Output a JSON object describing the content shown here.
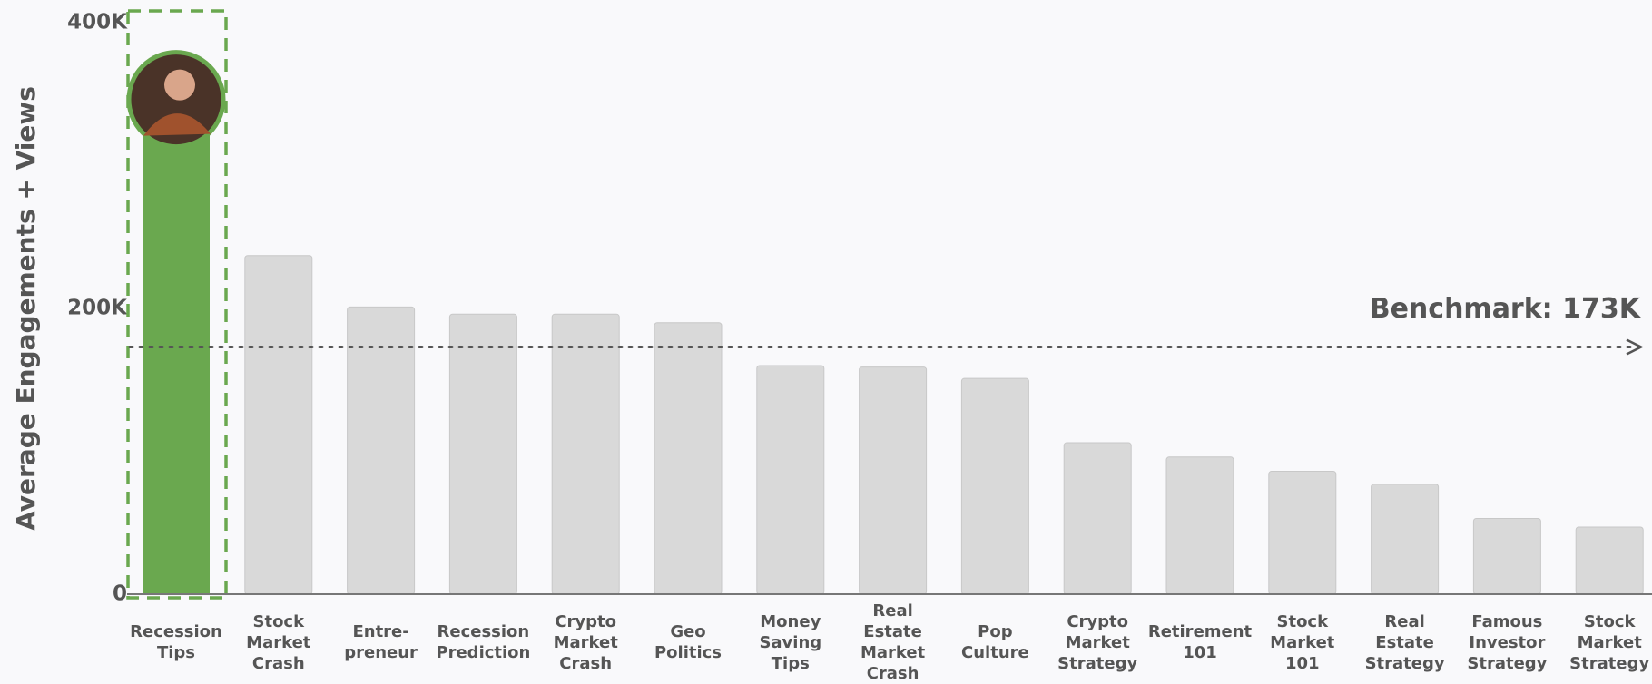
{
  "chart_data": {
    "type": "bar",
    "y_label": "Average Engagements + Views",
    "categories": [
      "Recession\nTips",
      "Stock\nMarket\nCrash",
      "Entre-\npreneur",
      "Recession\nPrediction",
      "Crypto\nMarket\nCrash",
      "Geo\nPolitics",
      "Money\nSaving\nTips",
      "Real\nEstate\nMarket\nCrash",
      "Pop\nCulture",
      "Crypto\nMarket\nStrategy",
      "Retirement\n101",
      "Stock\nMarket\n101",
      "Real\nEstate\nStrategy",
      "Famous\nInvestor\nStrategy",
      "Stock\nMarket\nStrategy"
    ],
    "values": [
      345000,
      237000,
      201000,
      196000,
      196000,
      190000,
      160000,
      159000,
      151000,
      106000,
      96000,
      86000,
      77000,
      53000,
      47000
    ],
    "color": "#d9d9d9",
    "highlight_color": "#6aa84f",
    "highlight_index": 0,
    "ylim": [
      0,
      400000
    ],
    "yticks": [
      {
        "value": 0,
        "label": "0"
      },
      {
        "value": 200000,
        "label": "200K"
      },
      {
        "value": 400000,
        "label": "400K"
      }
    ],
    "benchmark": {
      "value": 173000,
      "label": "Benchmark: 173K"
    }
  }
}
